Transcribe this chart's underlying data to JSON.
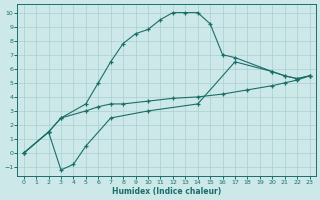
{
  "bg_color": "#cce8e8",
  "grid_color": "#aacfcf",
  "line_color": "#1a6e6a",
  "xlabel": "Humidex (Indice chaleur)",
  "xlim": [
    -0.5,
    23.5
  ],
  "ylim": [
    -1.6,
    10.6
  ],
  "xticks": [
    0,
    1,
    2,
    3,
    4,
    5,
    6,
    7,
    8,
    9,
    10,
    11,
    12,
    13,
    14,
    15,
    16,
    17,
    18,
    19,
    20,
    21,
    22,
    23
  ],
  "yticks": [
    -1,
    0,
    1,
    2,
    3,
    4,
    5,
    6,
    7,
    8,
    9,
    10
  ],
  "curve1_x": [
    0,
    2,
    3,
    5,
    6,
    7,
    8,
    9,
    10,
    11,
    12,
    13,
    14,
    15,
    16,
    17,
    20,
    21,
    22,
    23
  ],
  "curve1_y": [
    0,
    1.5,
    2.5,
    3.5,
    5.0,
    6.5,
    7.8,
    8.5,
    8.8,
    9.5,
    10.0,
    10.0,
    10.0,
    9.2,
    7.0,
    6.8,
    5.8,
    5.5,
    5.3,
    5.5
  ],
  "curve2_x": [
    0,
    2,
    3,
    5,
    6,
    7,
    8,
    10,
    12,
    14,
    16,
    18,
    20,
    21,
    22,
    23
  ],
  "curve2_y": [
    0,
    1.5,
    2.5,
    3.0,
    3.3,
    3.5,
    3.5,
    3.7,
    3.9,
    4.0,
    4.2,
    4.5,
    4.8,
    5.0,
    5.2,
    5.5
  ],
  "curve3_x": [
    0,
    2,
    3,
    4,
    5,
    7,
    10,
    14,
    17,
    20,
    21,
    22,
    23
  ],
  "curve3_y": [
    0,
    1.5,
    -1.2,
    -0.8,
    0.5,
    2.5,
    3.0,
    3.5,
    6.5,
    5.8,
    5.5,
    5.3,
    5.5
  ]
}
